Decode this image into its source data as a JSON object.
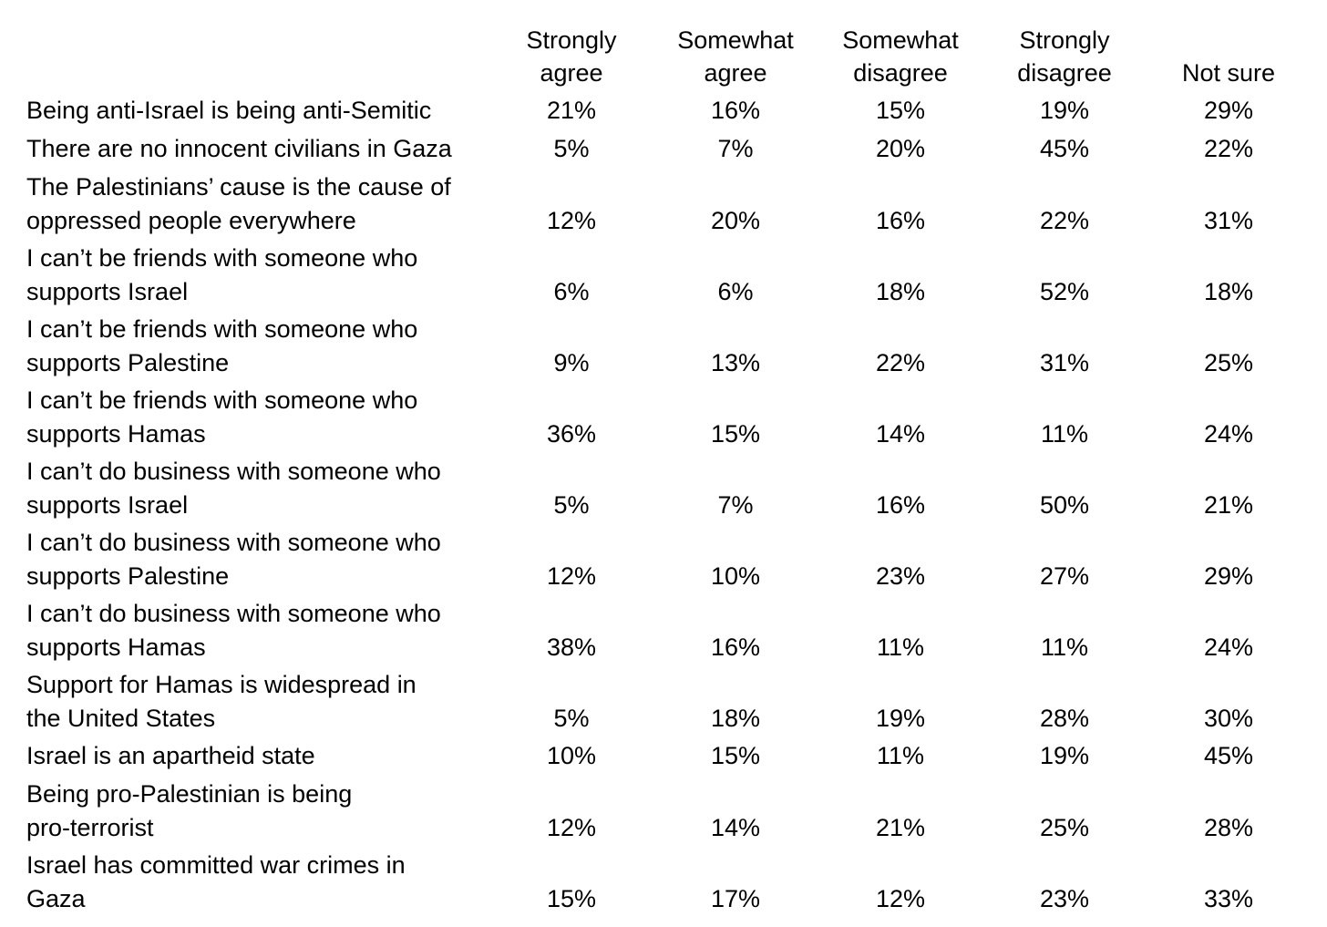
{
  "chart_data": {
    "type": "table",
    "columns": [
      [
        "Strongly",
        "agree"
      ],
      [
        "Somewhat",
        "agree"
      ],
      [
        "Somewhat",
        "disagree"
      ],
      [
        "Strongly",
        "disagree"
      ],
      [
        "Not sure"
      ]
    ],
    "rows": [
      {
        "label": [
          "Being anti-Israel is being anti-Semitic"
        ],
        "values": [
          "21%",
          "16%",
          "15%",
          "19%",
          "29%"
        ]
      },
      {
        "label": [
          "There are no innocent civilians in Gaza"
        ],
        "values": [
          "5%",
          "7%",
          "20%",
          "45%",
          "22%"
        ]
      },
      {
        "label": [
          "The Palestinians’ cause is the cause of",
          "oppressed people everywhere"
        ],
        "values": [
          "12%",
          "20%",
          "16%",
          "22%",
          "31%"
        ]
      },
      {
        "label": [
          "I can’t be friends with someone who",
          "supports Israel"
        ],
        "values": [
          "6%",
          "6%",
          "18%",
          "52%",
          "18%"
        ]
      },
      {
        "label": [
          "I can’t be friends with someone who",
          "supports Palestine"
        ],
        "values": [
          "9%",
          "13%",
          "22%",
          "31%",
          "25%"
        ]
      },
      {
        "label": [
          "I can’t be friends with someone who",
          "supports Hamas"
        ],
        "values": [
          "36%",
          "15%",
          "14%",
          "11%",
          "24%"
        ]
      },
      {
        "label": [
          "I can’t do business with someone who",
          "supports Israel"
        ],
        "values": [
          "5%",
          "7%",
          "16%",
          "50%",
          "21%"
        ]
      },
      {
        "label": [
          "I can’t do business with someone who",
          "supports Palestine"
        ],
        "values": [
          "12%",
          "10%",
          "23%",
          "27%",
          "29%"
        ]
      },
      {
        "label": [
          "I can’t do business with someone who",
          "supports Hamas"
        ],
        "values": [
          "38%",
          "16%",
          "11%",
          "11%",
          "24%"
        ]
      },
      {
        "label": [
          "Support for Hamas is widespread in",
          "the United States"
        ],
        "values": [
          "5%",
          "18%",
          "19%",
          "28%",
          "30%"
        ]
      },
      {
        "label": [
          "Israel is an apartheid state"
        ],
        "values": [
          "10%",
          "15%",
          "11%",
          "19%",
          "45%"
        ]
      },
      {
        "label": [
          "Being pro-Palestinian is being",
          "pro-terrorist"
        ],
        "values": [
          "12%",
          "14%",
          "21%",
          "25%",
          "28%"
        ]
      },
      {
        "label": [
          "Israel has committed war crimes in",
          "Gaza"
        ],
        "values": [
          "15%",
          "17%",
          "12%",
          "23%",
          "33%"
        ]
      }
    ]
  }
}
